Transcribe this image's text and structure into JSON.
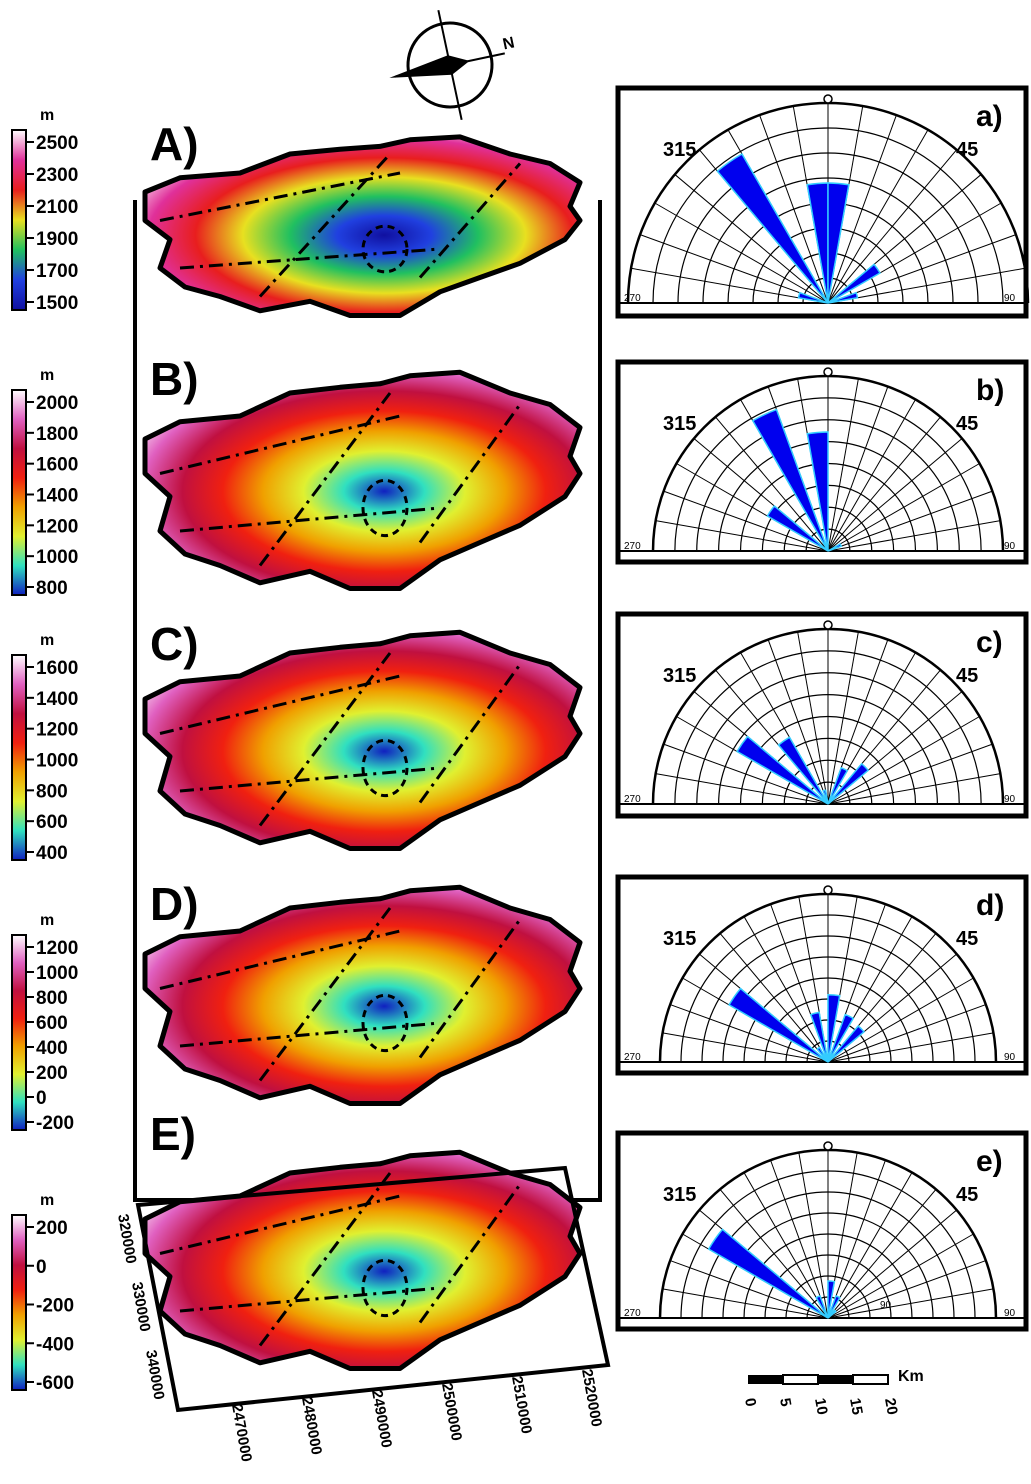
{
  "compass": {
    "north_label": "N"
  },
  "maps": [
    {
      "id": "A",
      "label": "A)",
      "unit": "m",
      "ticks": [
        "2500",
        "2300",
        "2100",
        "1900",
        "1700",
        "1500"
      ],
      "colors": [
        "#ffffff",
        "#e0309a",
        "#e81e1e",
        "#e8e020",
        "#20c060",
        "#2040e0",
        "#1010a0"
      ]
    },
    {
      "id": "B",
      "label": "B)",
      "unit": "m",
      "ticks": [
        "2000",
        "1800",
        "1600",
        "1400",
        "1200",
        "1000",
        "800"
      ],
      "colors": [
        "#ffffff",
        "#e060c0",
        "#c01040",
        "#f02010",
        "#f0a000",
        "#e0f030",
        "#30e0c0",
        "#1020c0"
      ]
    },
    {
      "id": "C",
      "label": "C)",
      "unit": "m",
      "ticks": [
        "1600",
        "1400",
        "1200",
        "1000",
        "800",
        "600",
        "400"
      ],
      "colors": [
        "#ffffff",
        "#e060c0",
        "#c01040",
        "#f02010",
        "#f0a000",
        "#e0f030",
        "#30e0c0",
        "#1020c0"
      ]
    },
    {
      "id": "D",
      "label": "D)",
      "unit": "m",
      "ticks": [
        "1200",
        "1000",
        "800",
        "600",
        "400",
        "200",
        "0",
        "-200"
      ],
      "colors": [
        "#ffffff",
        "#e060c0",
        "#c01040",
        "#f02010",
        "#f0a000",
        "#e0f030",
        "#30e0c0",
        "#1020c0"
      ]
    },
    {
      "id": "E",
      "label": "E)",
      "unit": "m",
      "ticks": [
        "200",
        "0",
        "-200",
        "-400",
        "-600"
      ],
      "colors": [
        "#ffffff",
        "#e060c0",
        "#c01040",
        "#f02010",
        "#f0a000",
        "#e0f030",
        "#30e0c0",
        "#1020c0"
      ]
    }
  ],
  "coords": {
    "northing": [
      "320000",
      "330000",
      "340000"
    ],
    "easting": [
      "2470000",
      "2480000",
      "2490000",
      "2500000",
      "2510000",
      "2520000"
    ]
  },
  "roses": [
    {
      "label": "a)",
      "left_label": "315",
      "right_label": "45",
      "end_left": "270",
      "end_right": "90",
      "petals": [
        {
          "az": 325,
          "r": 0.86
        },
        {
          "az": 355,
          "r": 0.6
        },
        {
          "az": 5,
          "r": 0.6
        },
        {
          "az": 55,
          "r": 0.3
        },
        {
          "az": 75,
          "r": 0.15
        },
        {
          "az": 285,
          "r": 0.15
        }
      ]
    },
    {
      "label": "b)",
      "left_label": "315",
      "right_label": "45",
      "end_left": "270",
      "end_right": "90",
      "petals": [
        {
          "az": 335,
          "r": 0.86
        },
        {
          "az": 355,
          "r": 0.68
        },
        {
          "az": 305,
          "r": 0.4
        },
        {
          "az": 65,
          "r": 0.08
        }
      ]
    },
    {
      "label": "c)",
      "left_label": "315",
      "right_label": "45",
      "end_left": "270",
      "end_right": "90",
      "petals": [
        {
          "az": 305,
          "r": 0.6
        },
        {
          "az": 325,
          "r": 0.44
        },
        {
          "az": 25,
          "r": 0.22
        },
        {
          "az": 45,
          "r": 0.3
        },
        {
          "az": 345,
          "r": 0.08
        }
      ]
    },
    {
      "label": "d)",
      "left_label": "315",
      "right_label": "45",
      "end_left": "270",
      "end_right": "90",
      "petals": [
        {
          "az": 305,
          "r": 0.68
        },
        {
          "az": 5,
          "r": 0.4
        },
        {
          "az": 345,
          "r": 0.3
        },
        {
          "az": 25,
          "r": 0.3
        },
        {
          "az": 45,
          "r": 0.28
        },
        {
          "az": 325,
          "r": 0.1
        }
      ]
    },
    {
      "label": "e)",
      "left_label": "315",
      "right_label": "45",
      "end_left": "270",
      "end_right": "90",
      "inner_label": "90",
      "petals": [
        {
          "az": 305,
          "r": 0.82
        },
        {
          "az": 5,
          "r": 0.22
        },
        {
          "az": 25,
          "r": 0.14
        },
        {
          "az": 335,
          "r": 0.14
        },
        {
          "az": 45,
          "r": 0.06
        }
      ]
    }
  ],
  "scale_bar": {
    "unit": "Km",
    "ticks": [
      "0",
      "5",
      "10",
      "15",
      "20"
    ]
  }
}
